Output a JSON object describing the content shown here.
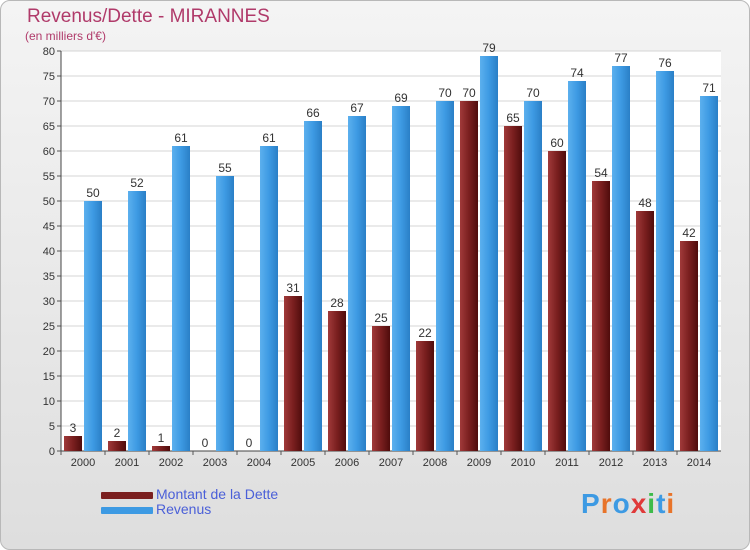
{
  "header": {
    "title": "Revenus/Dette - MIRANNES",
    "subtitle": "(en milliers d'€)"
  },
  "legend": {
    "items": [
      {
        "label": "Montant de la Dette",
        "color": "#7a1f1f"
      },
      {
        "label": "Revenus",
        "color": "#3d9ae3"
      }
    ]
  },
  "logo": {
    "text": "Proxiti",
    "letter_colors": [
      "#3d9ae3",
      "#e8742a",
      "#3d9ae3",
      "#e03a3a",
      "#3dbb4a",
      "#3d9ae3",
      "#e8742a"
    ]
  },
  "chart_data": {
    "type": "bar",
    "title": "Revenus/Dette - MIRANNES",
    "subtitle": "(en milliers d'€)",
    "categories": [
      "2000",
      "2001",
      "2002",
      "2003",
      "2004",
      "2005",
      "2006",
      "2007",
      "2008",
      "2009",
      "2010",
      "2011",
      "2012",
      "2013",
      "2014"
    ],
    "series": [
      {
        "name": "Montant de la Dette",
        "color": "#7a1f1f",
        "values": [
          3,
          2,
          1,
          0,
          0,
          31,
          28,
          25,
          22,
          70,
          65,
          60,
          54,
          48,
          42
        ]
      },
      {
        "name": "Revenus",
        "color": "#3d9ae3",
        "values": [
          50,
          52,
          61,
          55,
          61,
          66,
          67,
          69,
          70,
          79,
          70,
          74,
          77,
          76,
          71
        ]
      }
    ],
    "ylim": [
      0,
      80
    ],
    "yticks": [
      0,
      5,
      10,
      15,
      20,
      25,
      30,
      35,
      40,
      45,
      50,
      55,
      60,
      65,
      70,
      75,
      80
    ],
    "grid": true,
    "legend_position": "bottom-left"
  }
}
